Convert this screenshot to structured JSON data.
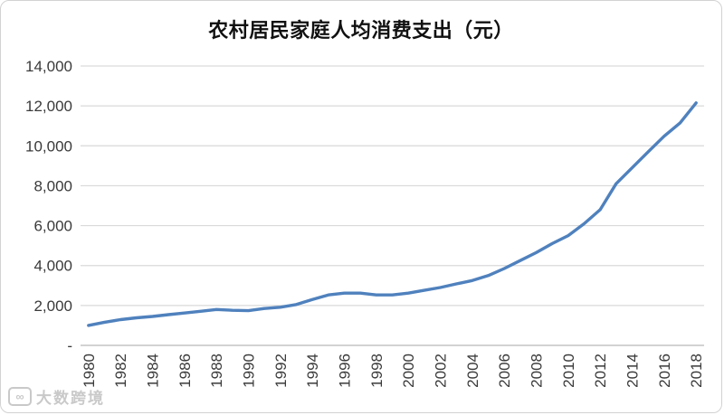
{
  "page": {
    "background": "#ffffff",
    "border_color": "#d2d2d2"
  },
  "chart_data": {
    "type": "line",
    "title": "农村居民家庭人均消费支出（元）",
    "xlabel": "",
    "ylabel": "",
    "legend": "none",
    "grid": true,
    "line_color": "#4F81BD",
    "tick_label_color": "#3a3a3a",
    "gridline_color": "#d9d9d9",
    "axis_line_color": "#b7b7b7",
    "ylim": [
      0,
      14000
    ],
    "y_ticks": {
      "values": [
        0,
        2000,
        4000,
        6000,
        8000,
        10000,
        12000,
        14000
      ],
      "labels": [
        "-",
        "2,000",
        "4,000",
        "6,000",
        "8,000",
        "10,000",
        "12,000",
        "14,000"
      ]
    },
    "x_tick_labels": [
      "1980",
      "1982",
      "1984",
      "1986",
      "1988",
      "1990",
      "1992",
      "1994",
      "1996",
      "1998",
      "2000",
      "2002",
      "2004",
      "2006",
      "2008",
      "2010",
      "2012",
      "2014",
      "2016",
      "2018"
    ],
    "x": [
      1980,
      1981,
      1982,
      1983,
      1984,
      1985,
      1986,
      1987,
      1988,
      1989,
      1990,
      1991,
      1992,
      1993,
      1994,
      1995,
      1996,
      1997,
      1998,
      1999,
      2000,
      2001,
      2002,
      2003,
      2004,
      2005,
      2006,
      2007,
      2008,
      2009,
      2010,
      2011,
      2012,
      2013,
      2014,
      2015,
      2016,
      2017,
      2018
    ],
    "values": [
      1000,
      1160,
      1290,
      1380,
      1450,
      1540,
      1620,
      1710,
      1800,
      1760,
      1740,
      1850,
      1910,
      2050,
      2300,
      2530,
      2620,
      2620,
      2530,
      2530,
      2620,
      2760,
      2900,
      3080,
      3250,
      3500,
      3850,
      4250,
      4650,
      5100,
      5500,
      6100,
      6800,
      8100,
      8900,
      9700,
      10480,
      11150,
      12150
    ]
  },
  "watermark": {
    "logo_glyph": "∞",
    "text": "大数跨境"
  }
}
